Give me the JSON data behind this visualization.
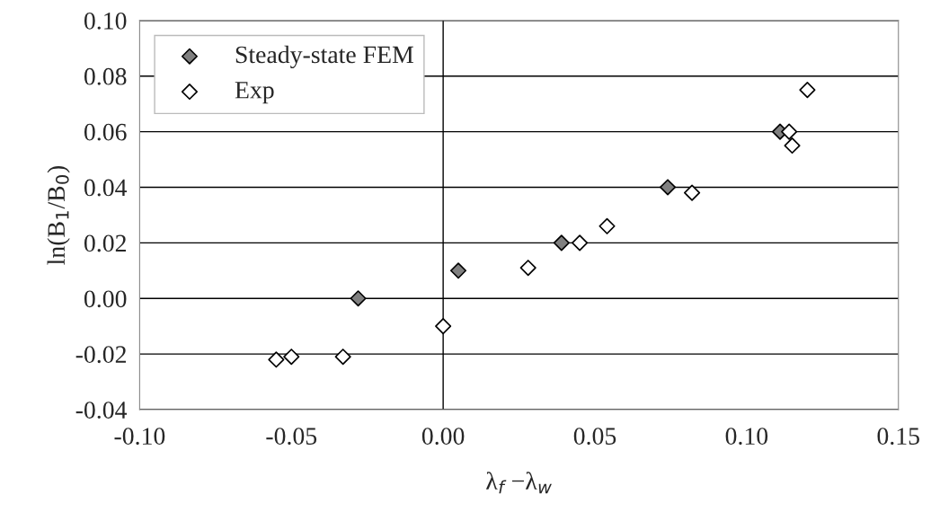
{
  "chart_data": {
    "type": "scatter",
    "xlabel": "λ$_{f}$ −λ$_{w}$",
    "ylabel": "ln(B$_{1}$/B$_{0}$)",
    "series": [
      {
        "name": "Steady-state FEM",
        "color": "#808080",
        "marker": "diamond",
        "x": [
          -0.028,
          0.005,
          0.039,
          0.074,
          0.111
        ],
        "values": [
          0.0,
          0.01,
          0.02,
          0.04,
          0.06
        ]
      },
      {
        "name": "Exp",
        "color": "#ffffff",
        "marker": "diamond",
        "x": [
          -0.055,
          -0.05,
          -0.033,
          0.0,
          0.028,
          0.045,
          0.054,
          0.082,
          0.114,
          0.115,
          0.12
        ],
        "values": [
          -0.022,
          -0.021,
          -0.021,
          -0.01,
          0.011,
          0.02,
          0.026,
          0.038,
          0.06,
          0.055,
          0.075
        ]
      }
    ],
    "xlim": [
      -0.1,
      0.15
    ],
    "ylim": [
      -0.04,
      0.1
    ],
    "xticks": [
      {
        "value": -0.1,
        "label": "-0.10"
      },
      {
        "value": -0.05,
        "label": "-0.05"
      },
      {
        "value": 0,
        "label": "0.00"
      },
      {
        "value": 0.05,
        "label": "0.05"
      },
      {
        "value": 0.1,
        "label": "0.10"
      },
      {
        "value": 0.15,
        "label": "0.15"
      }
    ],
    "yticks": [
      {
        "value": -0.04,
        "label": "-0.04"
      },
      {
        "value": -0.02,
        "label": "-0.02"
      },
      {
        "value": 0,
        "label": "0.00"
      },
      {
        "value": 0.02,
        "label": "0.02"
      },
      {
        "value": 0.04,
        "label": "0.04"
      },
      {
        "value": 0.06,
        "label": "0.06"
      },
      {
        "value": 0.08,
        "label": "0.08"
      },
      {
        "value": 0.1,
        "label": "0.10"
      }
    ],
    "ref_lines": [
      {
        "axis": "x",
        "value": 0
      }
    ],
    "grid": "y",
    "legend": "top left"
  }
}
